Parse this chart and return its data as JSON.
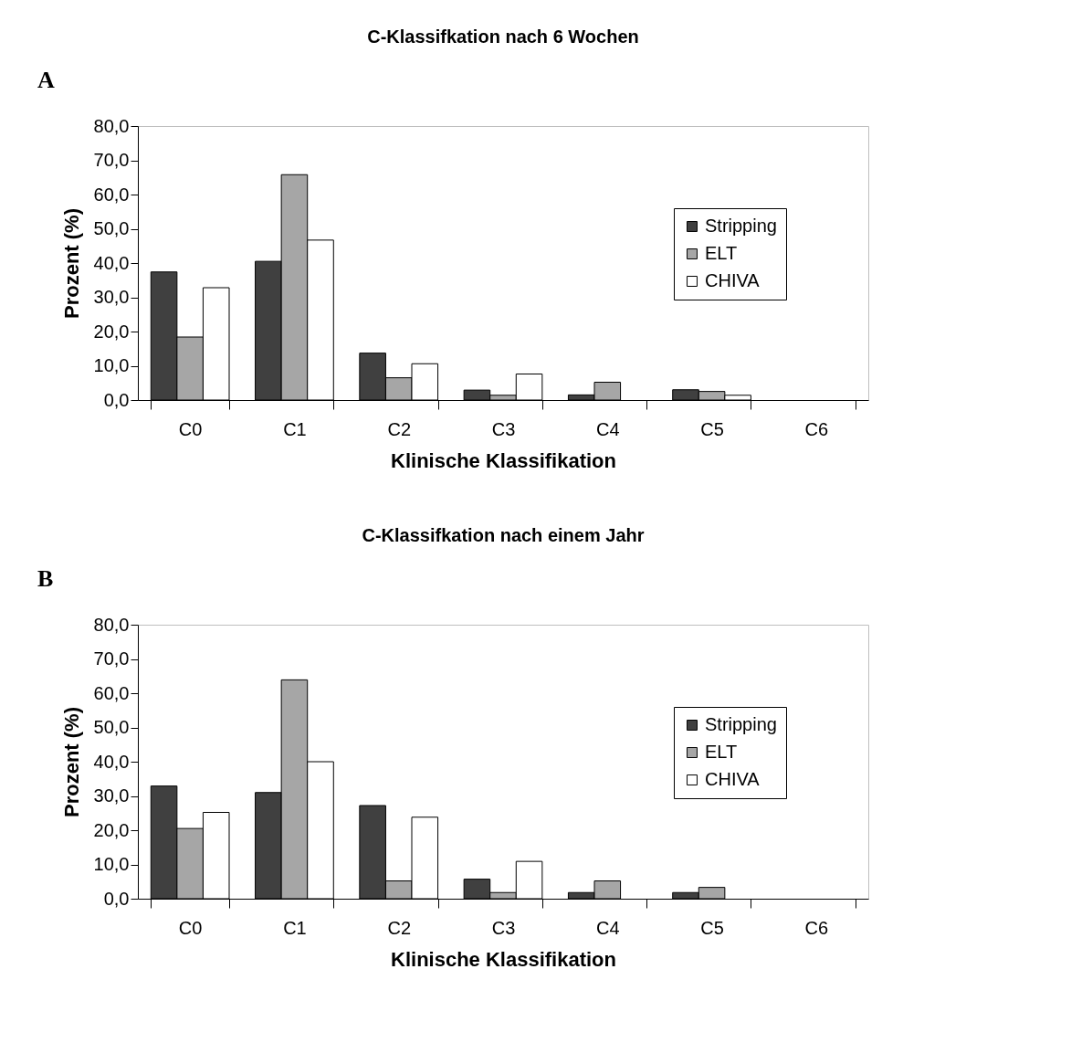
{
  "chart_data": [
    {
      "type": "bar",
      "title": "C-Klassifkation nach 6 Wochen",
      "xlabel": "Klinische Klassifikation",
      "ylabel": "Prozent (%)",
      "annotations": [
        "A"
      ],
      "categories": [
        "C0",
        "C1",
        "C2",
        "C3",
        "C4",
        "C5",
        "C6"
      ],
      "series": [
        {
          "name": "Stripping",
          "color": "#404040",
          "values": [
            37.4,
            40.5,
            13.7,
            2.9,
            1.5,
            3.0,
            0
          ]
        },
        {
          "name": "ELT",
          "color": "#a6a6a6",
          "values": [
            18.4,
            65.8,
            6.5,
            1.4,
            5.2,
            2.5,
            0
          ]
        },
        {
          "name": "CHIVA",
          "color": "#ffffff",
          "values": [
            32.8,
            46.7,
            10.6,
            7.6,
            0,
            1.4,
            0
          ]
        }
      ],
      "ylim": [
        0,
        80
      ],
      "yticks": [
        {
          "value": 0,
          "label": "0,0"
        },
        {
          "value": 10,
          "label": "10,0"
        },
        {
          "value": 20,
          "label": "20,0"
        },
        {
          "value": 30,
          "label": "30,0"
        },
        {
          "value": 40,
          "label": "40,0"
        },
        {
          "value": 50,
          "label": "50,0"
        },
        {
          "value": 60,
          "label": "60,0"
        },
        {
          "value": 70,
          "label": "70,0"
        },
        {
          "value": 80,
          "label": "80,0"
        }
      ],
      "grid": false,
      "legend": "top right"
    },
    {
      "type": "bar",
      "title": "C-Klassifkation nach einem Jahr",
      "xlabel": "Klinische Klassifikation",
      "ylabel": "Prozent (%)",
      "annotations": [
        "B"
      ],
      "categories": [
        "C0",
        "C1",
        "C2",
        "C3",
        "C4",
        "C5",
        "C6"
      ],
      "series": [
        {
          "name": "Stripping",
          "color": "#404040",
          "values": [
            32.9,
            31.0,
            27.2,
            5.7,
            1.8,
            1.8,
            0
          ]
        },
        {
          "name": "ELT",
          "color": "#a6a6a6",
          "values": [
            20.5,
            63.9,
            5.2,
            1.8,
            5.2,
            3.3,
            0
          ]
        },
        {
          "name": "CHIVA",
          "color": "#ffffff",
          "values": [
            25.2,
            40.0,
            23.8,
            10.9,
            0,
            0,
            0
          ]
        }
      ],
      "ylim": [
        0,
        80
      ],
      "yticks": [
        {
          "value": 0,
          "label": "0,0"
        },
        {
          "value": 10,
          "label": "10,0"
        },
        {
          "value": 20,
          "label": "20,0"
        },
        {
          "value": 30,
          "label": "30,0"
        },
        {
          "value": 40,
          "label": "40,0"
        },
        {
          "value": 50,
          "label": "50,0"
        },
        {
          "value": 60,
          "label": "60,0"
        },
        {
          "value": 70,
          "label": "70,0"
        },
        {
          "value": 80,
          "label": "80,0"
        }
      ],
      "grid": false,
      "legend": "top right"
    }
  ]
}
